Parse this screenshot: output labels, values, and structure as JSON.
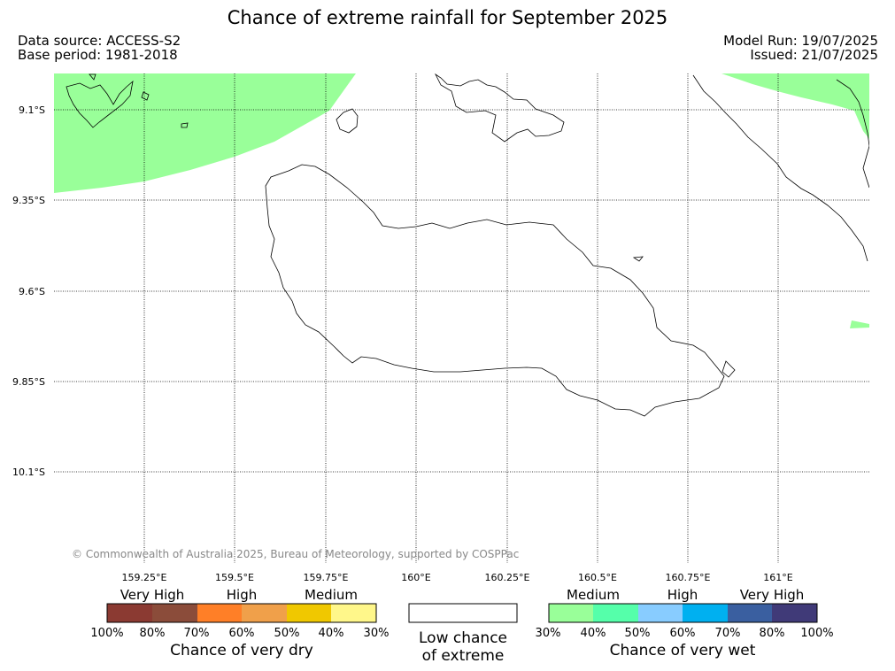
{
  "title": "Chance of extreme rainfall for September 2025",
  "data_source": "Data source: ACCESS-S2",
  "base_period": "Base period: 1981-2018",
  "model_run": "Model Run: 19/07/2025",
  "issued": "Issued: 21/07/2025",
  "copyright": "© Commonwealth of Australia 2025, Bureau of Meteorology, supported by COSPPac",
  "map": {
    "lat_ticks": [
      "9.1°S",
      "9.35°S",
      "9.6°S",
      "9.85°S",
      "10.1°S"
    ],
    "lon_ticks": [
      "159.25°E",
      "159.5°E",
      "159.75°E",
      "160°E",
      "160.25°E",
      "160.5°E",
      "160.75°E",
      "161°E"
    ],
    "overlay_color": "#99ff99"
  },
  "legend": {
    "dry": {
      "categories": [
        "Very High",
        "High",
        "Medium"
      ],
      "colors": [
        "#8b3a32",
        "#8b4c3a",
        "#ff7f27",
        "#f0a04a",
        "#f0c800",
        "#fff78a"
      ],
      "ticks": [
        "100%",
        "80%",
        "70%",
        "60%",
        "50%",
        "40%",
        "30%"
      ],
      "title": "Chance of very dry"
    },
    "low": {
      "line1": "Low chance",
      "line2": "of extreme",
      "color": "#ffffff"
    },
    "wet": {
      "categories": [
        "Medium",
        "High",
        "Very High"
      ],
      "colors": [
        "#99ff99",
        "#55ffaa",
        "#88ccff",
        "#00b0f0",
        "#3a5fa0",
        "#403a78"
      ],
      "ticks": [
        "30%",
        "40%",
        "50%",
        "60%",
        "70%",
        "80%",
        "100%"
      ],
      "title": "Chance of very wet"
    }
  }
}
